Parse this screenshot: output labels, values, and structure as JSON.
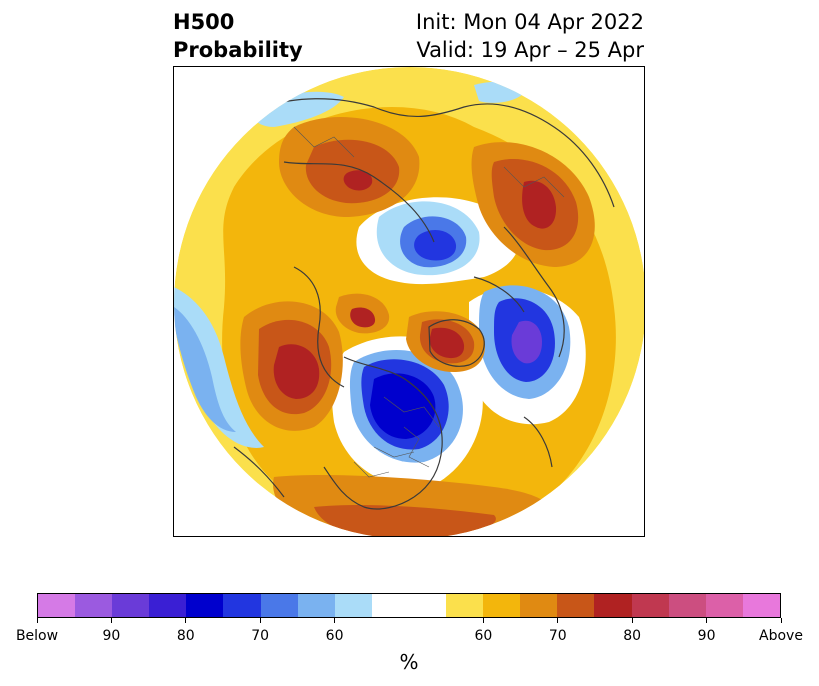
{
  "header": {
    "title_line1": "H500",
    "title_line2": "Probability",
    "init": "Init: Mon 04 Apr 2022",
    "valid": "Valid: 19 Apr – 25 Apr"
  },
  "colorbar": {
    "unit": "%",
    "colors": [
      "#d57ae6",
      "#9b5ae0",
      "#6a3bd8",
      "#3a1fd4",
      "#0000cd",
      "#2236e0",
      "#4a78e8",
      "#7ab2f0",
      "#aadcf8",
      "#ffffff",
      "#ffffff",
      "#fbe04c",
      "#f3b60c",
      "#e08a12",
      "#c85618",
      "#b02222",
      "#c03850",
      "#cc4e80",
      "#dc60a8",
      "#e878dc"
    ],
    "labels": [
      "Below",
      "90",
      "80",
      "70",
      "60",
      "60",
      "70",
      "80",
      "90",
      "Above"
    ]
  },
  "map": {
    "projection": "north-polar-stereographic",
    "field_legend": {
      "below_colors": "blue",
      "above_colors": "warm"
    }
  }
}
